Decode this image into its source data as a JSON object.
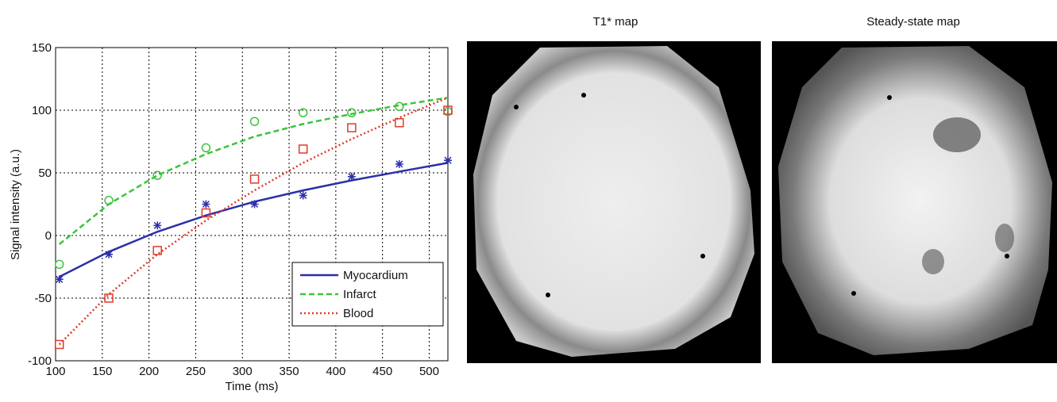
{
  "chart_data": {
    "type": "scatter",
    "xlabel": "Time (ms)",
    "ylabel": "Signal intensity (a.u.)",
    "x": [
      104,
      157,
      209,
      261,
      313,
      365,
      417,
      468,
      520
    ],
    "xlim": [
      100,
      520
    ],
    "xticks": [
      100,
      150,
      200,
      250,
      300,
      350,
      400,
      450,
      500
    ],
    "ylim": [
      -100,
      150
    ],
    "yticks": [
      -100,
      -50,
      0,
      50,
      100,
      150
    ],
    "grid": true,
    "legend": "lower right",
    "series": [
      {
        "name": "Myocardium",
        "color": "#2b30a8",
        "marker": "star",
        "dash": "solid",
        "values": [
          -35,
          -15,
          8,
          25,
          25,
          32,
          47,
          57,
          60
        ],
        "fit": [
          -33,
          -13,
          3,
          16,
          27,
          36,
          44,
          51,
          58
        ]
      },
      {
        "name": "Infarct",
        "color": "#3cc43c",
        "marker": "circle",
        "dash": "dashed",
        "values": [
          -23,
          28,
          48,
          70,
          91,
          98,
          98,
          103,
          99
        ],
        "fit": [
          -7,
          25,
          48,
          65,
          79,
          89,
          97,
          104,
          110
        ]
      },
      {
        "name": "Blood",
        "color": "#e03a2a",
        "marker": "square",
        "dash": "dotted",
        "values": [
          -87,
          -50,
          -12,
          18,
          45,
          69,
          86,
          90,
          100
        ],
        "fit": [
          -87,
          -47,
          -15,
          12,
          36,
          58,
          77,
          94,
          110
        ]
      }
    ]
  },
  "panels": [
    {
      "title": "T1* map"
    },
    {
      "title": "Steady-state map"
    }
  ]
}
